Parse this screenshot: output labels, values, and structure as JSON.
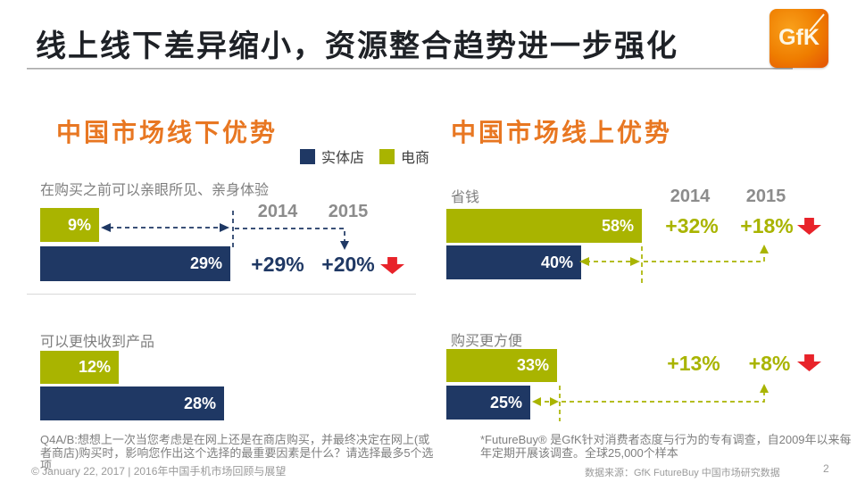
{
  "header": {
    "title": "线上线下差异缩小，资源整合趋势进一步强化",
    "logo_text": "GfK"
  },
  "sections": {
    "offline": {
      "title": "中国市场线下优势"
    },
    "online": {
      "title": "中国市场线上优势"
    }
  },
  "legend": {
    "items": [
      {
        "label": "实体店",
        "color": "#1F3864"
      },
      {
        "label": "电商",
        "color": "#A9B400"
      }
    ]
  },
  "colors": {
    "accent_orange": "#E87722",
    "navy": "#1F3864",
    "olive": "#A9B400",
    "red": "#E8232A",
    "gray_text": "#7F7F7F"
  },
  "chart_data": [
    {
      "id": "offline-experience",
      "type": "bar",
      "section": "中国市场线下优势",
      "question": "在购买之前可以亲眼所见、亲身体验",
      "unit": "%",
      "series": [
        {
          "name": "电商",
          "value": 9,
          "label": "9%",
          "color": "#A9B400"
        },
        {
          "name": "实体店",
          "value": 29,
          "label": "29%",
          "color": "#1F3864"
        }
      ],
      "year_headers": [
        "2014",
        "2015"
      ],
      "gap_changes": [
        {
          "year": "2014",
          "label": "+29%"
        },
        {
          "year": "2015",
          "label": "+20%"
        }
      ],
      "trend": "down"
    },
    {
      "id": "offline-faster-delivery",
      "type": "bar",
      "section": "中国市场线下优势",
      "question": "可以更快收到产品",
      "unit": "%",
      "series": [
        {
          "name": "电商",
          "value": 12,
          "label": "12%",
          "color": "#A9B400"
        },
        {
          "name": "实体店",
          "value": 28,
          "label": "28%",
          "color": "#1F3864"
        }
      ]
    },
    {
      "id": "online-save-money",
      "type": "bar",
      "section": "中国市场线上优势",
      "question": "省钱",
      "unit": "%",
      "series": [
        {
          "name": "电商",
          "value": 58,
          "label": "58%",
          "color": "#A9B400"
        },
        {
          "name": "实体店",
          "value": 40,
          "label": "40%",
          "color": "#1F3864"
        }
      ],
      "year_headers": [
        "2014",
        "2015"
      ],
      "gap_changes": [
        {
          "year": "2014",
          "label": "+32%"
        },
        {
          "year": "2015",
          "label": "+18%"
        }
      ],
      "trend": "down"
    },
    {
      "id": "online-convenience",
      "type": "bar",
      "section": "中国市场线上优势",
      "question": "购买更方便",
      "unit": "%",
      "series": [
        {
          "name": "电商",
          "value": 33,
          "label": "33%",
          "color": "#A9B400"
        },
        {
          "name": "实体店",
          "value": 25,
          "label": "25%",
          "color": "#1F3864"
        }
      ],
      "gap_changes": [
        {
          "year": "2014",
          "label": "+13%"
        },
        {
          "year": "2015",
          "label": "+8%"
        }
      ],
      "trend": "down"
    }
  ],
  "footnotes": {
    "left": "Q4A/B:想想上一次当您考虑是在网上还是在商店购买，并最终决定在网上(或者商店)购买时，影响您作出这个选择的最重要因素是什么？请选择最多5个选项",
    "right": "*FutureBuy® 是GfK针对消费者态度与行为的专有调查，自2009年以来每年定期开展该调查。全球25,000个样本"
  },
  "footer": {
    "left": "© January 22, 2017 | 2016年中国手机市场回顾与展望",
    "source": "数据来源：GfK FutureBuy 中国市场研究数据",
    "page": "2"
  }
}
